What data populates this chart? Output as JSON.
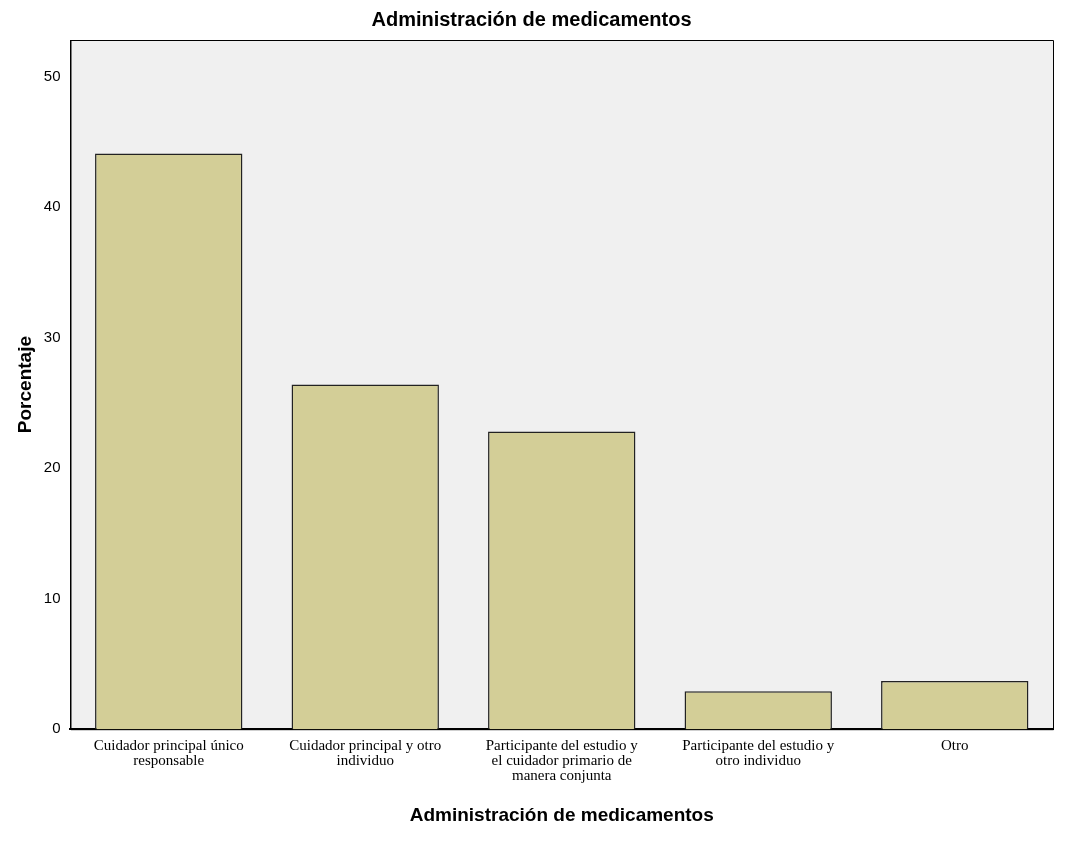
{
  "chart_data": {
    "type": "bar",
    "title": "Administración de medicamentos",
    "xlabel": "Administración de medicamentos",
    "ylabel": "Porcentaje",
    "categories": [
      "Cuidador principal único responsable",
      "Cuidador principal y otro individuo",
      "Participante del estudio y el cuidador primario de manera conjunta",
      "Participante del estudio y otro individuo",
      "Otro"
    ],
    "values": [
      44.1,
      26.4,
      22.8,
      2.9,
      3.7
    ],
    "color": "#d3ce97",
    "ylim": [
      0,
      52.8
    ],
    "yticks": [
      0,
      10,
      20,
      30,
      40,
      50
    ],
    "grid": false,
    "legend": false
  }
}
